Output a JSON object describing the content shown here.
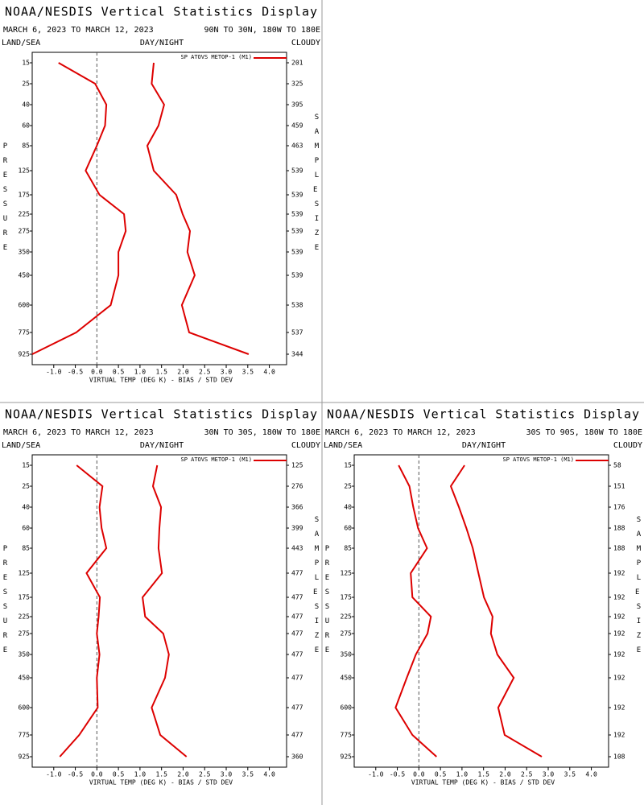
{
  "chart_data": [
    {
      "type": "line",
      "title": "NOAA/NESDIS Vertical Statistics Display",
      "date_range": "MARCH 6, 2023 TO MARCH 12, 2023",
      "region": "90N TO 30N, 180W TO 180E",
      "land_sea": "LAND/SEA",
      "day_night": "DAY/NIGHT",
      "cloudy": "CLOUDY",
      "legend": "SP ATOVS METOP-1 (M1)",
      "y_label": "PRESSURE",
      "y2_label": "SAMPLE SIZE",
      "x_label": "VIRTUAL TEMP (DEG K) - BIAS / STD DEV",
      "categories": [
        15,
        25,
        40,
        60,
        85,
        125,
        175,
        225,
        275,
        350,
        450,
        600,
        775,
        925
      ],
      "series": [
        {
          "color": "#dd0000",
          "values": [
            -0.89,
            -0.04,
            0.22,
            0.19,
            0.0,
            -0.26,
            0.06,
            0.63,
            0.67,
            0.5,
            0.5,
            0.32,
            -0.48,
            -1.5
          ]
        },
        {
          "color": "#dd0000",
          "values": [
            1.32,
            1.27,
            1.56,
            1.43,
            1.17,
            1.32,
            1.84,
            1.99,
            2.16,
            2.1,
            2.27,
            1.97,
            2.14,
            3.52
          ]
        }
      ],
      "sample_size": [
        201,
        325,
        395,
        459,
        463,
        539,
        539,
        539,
        539,
        539,
        539,
        538,
        537,
        344
      ],
      "xlim": [
        -1.5,
        4.4
      ],
      "xticks": [
        {
          "value": -1,
          "label": "-1.0"
        },
        -0.5,
        {
          "value": 0,
          "label": "0.0"
        },
        0.5,
        {
          "value": 1,
          "label": "1.0"
        },
        1.5,
        {
          "value": 2,
          "label": "2.0"
        },
        2.5,
        {
          "value": 3,
          "label": "3.0"
        },
        3.5,
        {
          "value": 4,
          "label": "4.0"
        }
      ]
    },
    {
      "type": "line",
      "title": "NOAA/NESDIS Vertical Statistics Display",
      "date_range": "MARCH 6, 2023 TO MARCH 12, 2023",
      "region": "30N TO 30S, 180W TO 180E",
      "land_sea": "LAND/SEA",
      "day_night": "DAY/NIGHT",
      "cloudy": "CLOUDY",
      "legend": "SP ATOVS METOP-1 (M1)",
      "y_label": "PRESSURE",
      "y2_label": "SAMPLE SIZE",
      "x_label": "VIRTUAL TEMP (DEG K) - BIAS / STD DEV",
      "categories": [
        15,
        25,
        40,
        60,
        85,
        125,
        175,
        225,
        275,
        350,
        450,
        600,
        775,
        925
      ],
      "series": [
        {
          "color": "#dd0000",
          "values": [
            -0.47,
            0.13,
            0.06,
            0.11,
            0.22,
            -0.24,
            0.07,
            0.04,
            0.0,
            0.06,
            0.0,
            0.02,
            -0.41,
            -0.86
          ]
        },
        {
          "color": "#dd0000",
          "values": [
            1.4,
            1.3,
            1.49,
            1.45,
            1.43,
            1.51,
            1.06,
            1.12,
            1.54,
            1.67,
            1.58,
            1.27,
            1.47,
            2.08
          ]
        }
      ],
      "sample_size": [
        125,
        276,
        366,
        399,
        443,
        477,
        477,
        477,
        477,
        477,
        477,
        477,
        477,
        360
      ],
      "xlim": [
        -1.5,
        4.4
      ],
      "xticks": [
        {
          "value": -1,
          "label": "-1.0"
        },
        -0.5,
        {
          "value": 0,
          "label": "0.0"
        },
        0.5,
        {
          "value": 1,
          "label": "1.0"
        },
        1.5,
        {
          "value": 2,
          "label": "2.0"
        },
        2.5,
        {
          "value": 3,
          "label": "3.0"
        },
        3.5,
        {
          "value": 4,
          "label": "4.0"
        }
      ]
    },
    {
      "type": "line",
      "title": "NOAA/NESDIS Vertical Statistics Display",
      "date_range": "MARCH 6, 2023 TO MARCH 12, 2023",
      "region": "30S TO 90S, 180W TO 180E",
      "land_sea": "LAND/SEA",
      "day_night": "DAY/NIGHT",
      "cloudy": "CLOUDY",
      "legend": "SP ATOVS METOP-1 (M1)",
      "y_label": "PRESSURE",
      "y2_label": "SAMPLE SIZE",
      "x_label": "VIRTUAL TEMP (DEG K) - BIAS / STD DEV",
      "categories": [
        15,
        25,
        40,
        60,
        85,
        125,
        175,
        225,
        275,
        350,
        450,
        600,
        775,
        925
      ],
      "series": [
        {
          "color": "#dd0000",
          "values": [
            -0.47,
            -0.22,
            -0.13,
            -0.02,
            0.19,
            -0.19,
            -0.15,
            0.28,
            0.2,
            -0.07,
            -0.28,
            -0.54,
            -0.15,
            0.41
          ]
        },
        {
          "color": "#dd0000",
          "values": [
            1.06,
            0.74,
            0.93,
            1.1,
            1.25,
            1.38,
            1.51,
            1.71,
            1.67,
            1.82,
            2.2,
            1.84,
            1.99,
            2.85
          ]
        }
      ],
      "sample_size": [
        58,
        151,
        176,
        188,
        188,
        192,
        192,
        192,
        192,
        192,
        192,
        192,
        192,
        108
      ],
      "xlim": [
        -1.5,
        4.4
      ],
      "xticks": [
        {
          "value": -1,
          "label": "-1.0"
        },
        -0.5,
        {
          "value": 0,
          "label": "0.0"
        },
        0.5,
        {
          "value": 1,
          "label": "1.0"
        },
        1.5,
        {
          "value": 2,
          "label": "2.0"
        },
        2.5,
        {
          "value": 3,
          "label": "3.0"
        },
        3.5,
        {
          "value": 4,
          "label": "4.0"
        }
      ]
    }
  ]
}
